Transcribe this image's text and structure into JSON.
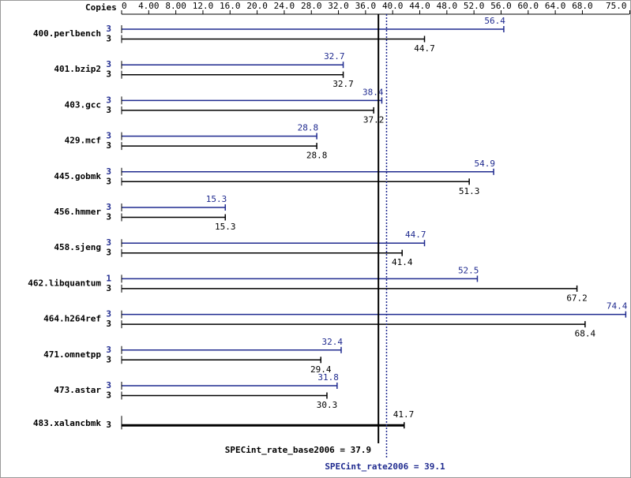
{
  "chart_data": {
    "type": "spec-bars",
    "axis_label": "Copies",
    "xlim": [
      0,
      75
    ],
    "xticks": [
      0,
      {
        "value": 4,
        "label": "4.00"
      },
      {
        "value": 8,
        "label": "8.00"
      },
      {
        "value": 12,
        "label": "12.0"
      },
      {
        "value": 16,
        "label": "16.0"
      },
      {
        "value": 20,
        "label": "20.0"
      },
      {
        "value": 24,
        "label": "24.0"
      },
      {
        "value": 28,
        "label": "28.0"
      },
      {
        "value": 32,
        "label": "32.0"
      },
      {
        "value": 36,
        "label": "36.0"
      },
      {
        "value": 40,
        "label": "40.0"
      },
      {
        "value": 44,
        "label": "44.0"
      },
      {
        "value": 48,
        "label": "48.0"
      },
      {
        "value": 52,
        "label": "52.0"
      },
      {
        "value": 56,
        "label": "56.0"
      },
      {
        "value": 60,
        "label": "60.0"
      },
      {
        "value": 64,
        "label": "64.0"
      },
      {
        "value": 68,
        "label": "68.0"
      },
      {
        "value": 75,
        "label": "75.0"
      }
    ],
    "categories": [
      "400.perlbench",
      "401.bzip2",
      "403.gcc",
      "429.mcf",
      "445.gobmk",
      "456.hmmer",
      "458.sjeng",
      "462.libquantum",
      "464.h264ref",
      "471.omnetpp",
      "473.astar",
      "483.xalancbmk"
    ],
    "series": [
      {
        "color": "#1f2a8f",
        "copies": [
          3,
          3,
          3,
          3,
          3,
          3,
          3,
          1,
          3,
          3,
          3,
          null
        ],
        "values": [
          56.4,
          32.7,
          38.4,
          28.8,
          54.9,
          15.3,
          44.7,
          52.5,
          74.4,
          32.4,
          31.8,
          null
        ]
      },
      {
        "color": "#000000",
        "copies": [
          3,
          3,
          3,
          3,
          3,
          3,
          3,
          3,
          3,
          3,
          3,
          3
        ],
        "values": [
          44.7,
          32.7,
          37.2,
          28.8,
          51.3,
          15.3,
          41.4,
          67.2,
          68.4,
          29.4,
          30.3,
          41.7
        ]
      }
    ],
    "reference_lines": [
      {
        "label": "SPECint_rate_base2006 = 37.9",
        "value": 37.9,
        "color": "#000000"
      },
      {
        "label": "SPECint_rate2006 = 39.1",
        "value": 39.1,
        "color": "#1f2a8f"
      }
    ]
  }
}
